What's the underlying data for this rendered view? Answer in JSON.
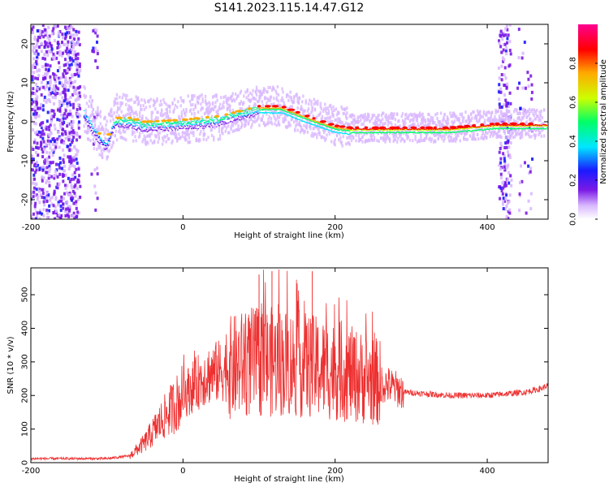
{
  "title": "S141.2023.115.14.47.G12",
  "chart_data": [
    {
      "type": "heatmap",
      "xlabel": "Height of straight line (km)",
      "ylabel": "Frequency (Hz)",
      "xlim": [
        -200,
        480
      ],
      "ylim": [
        -25,
        25
      ],
      "xticks": [
        -200,
        0,
        200,
        400
      ],
      "yticks": [
        20,
        10,
        0,
        -10,
        -20
      ],
      "colorbar": {
        "label": "Normalized spectral amplitude",
        "range": [
          0,
          1
        ],
        "ticks": [
          "0.0",
          "0.2",
          "0.4",
          "0.6",
          "0.8"
        ],
        "colors": [
          "#ffffff",
          "#d9b8ff",
          "#7a1ae6",
          "#1a1aff",
          "#00e6ff",
          "#00ff66",
          "#ccff00",
          "#ffaa00",
          "#ff0000",
          "#ff0090"
        ]
      },
      "ridge": {
        "x": [
          -130,
          -120,
          -110,
          -100,
          -90,
          -70,
          -50,
          0,
          50,
          100,
          130,
          170,
          200,
          220,
          300,
          350,
          410,
          480
        ],
        "y": [
          3,
          0,
          -3,
          -5,
          1,
          1,
          0,
          0.5,
          1.5,
          4,
          4,
          1,
          -1,
          -1.5,
          -1.5,
          -1.5,
          -0.5,
          -0.5
        ]
      },
      "grid": false
    },
    {
      "type": "line",
      "xlabel": "Height of straight line (km)",
      "ylabel": "SNR (10 * v/v)",
      "xlim": [
        -200,
        480
      ],
      "ylim": [
        0,
        580
      ],
      "xticks": [
        -200,
        0,
        200,
        400
      ],
      "yticks": [
        0,
        100,
        200,
        300,
        400,
        500
      ],
      "color": "#ee3030",
      "envelope": {
        "x": [
          -200,
          -100,
          -70,
          -50,
          -30,
          0,
          30,
          60,
          90,
          120,
          150,
          180,
          210,
          240,
          270,
          290,
          350,
          400,
          450,
          470,
          480
        ],
        "y": [
          12,
          12,
          20,
          60,
          120,
          200,
          260,
          280,
          300,
          300,
          295,
          280,
          270,
          250,
          230,
          210,
          200,
          200,
          210,
          220,
          230
        ]
      },
      "peaks": {
        "x": [
          100,
          117,
          170
        ],
        "y": [
          560,
          570,
          570
        ]
      },
      "grid": false
    }
  ]
}
